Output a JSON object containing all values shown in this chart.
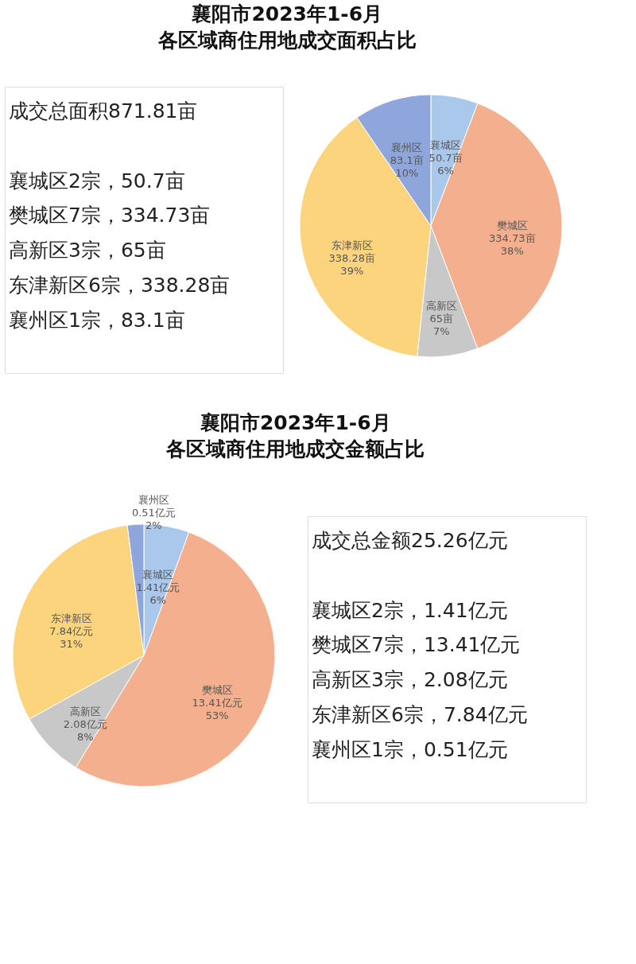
{
  "chart_data": [
    {
      "type": "other",
      "annotations": [
        "成交总面积871.81亩",
        "襄城区2宗，50.7亩",
        "樊城区7宗，334.73亩",
        "高新区3宗，65亩",
        "东津新区6宗，338.28亩",
        "襄州区1宗，83.1亩"
      ]
    },
    {
      "type": "pie",
      "title": "襄阳市2023年1-6月",
      "subtitle": "各区域商住用地成交面积占比",
      "categories": [
        "襄城区",
        "樊城区",
        "高新区",
        "东津新区",
        "襄州区"
      ],
      "values": [
        50.7,
        334.73,
        65,
        338.28,
        83.1
      ],
      "value_labels": [
        "50.7亩\n6%",
        "334.73亩\n38%",
        "65亩\n7%",
        "338.28亩\n39%",
        "83.1亩\n10%"
      ],
      "colors": [
        "#a9c8ec",
        "#f4b08e",
        "#c8c8c8",
        "#fdd47e",
        "#8fa6dc"
      ]
    },
    {
      "type": "pie",
      "title": "襄阳市2023年1-6月",
      "subtitle": "各区域商住用地成交金额占比",
      "categories": [
        "襄城区",
        "樊城区",
        "高新区",
        "东津新区",
        "襄州区"
      ],
      "values": [
        1.41,
        13.41,
        2.08,
        7.84,
        0.51
      ],
      "value_labels": [
        "1.41亿元\n6%",
        "13.41亿元\n53%",
        "2.08亿元\n8%",
        "7.84亿元\n31%",
        "0.51亿元\n2%"
      ],
      "colors": [
        "#a9c8ec",
        "#f4b08e",
        "#c8c8c8",
        "#fdd47e",
        "#8fa6dc"
      ]
    },
    {
      "type": "other",
      "annotations": [
        "成交总金额25.26亿元",
        "襄城区2宗，1.41亿元",
        "樊城区7宗，13.41亿元",
        "高新区3宗，2.08亿元",
        "东津新区6宗，7.84亿元",
        "襄州区1宗，0.51亿元"
      ]
    }
  ]
}
